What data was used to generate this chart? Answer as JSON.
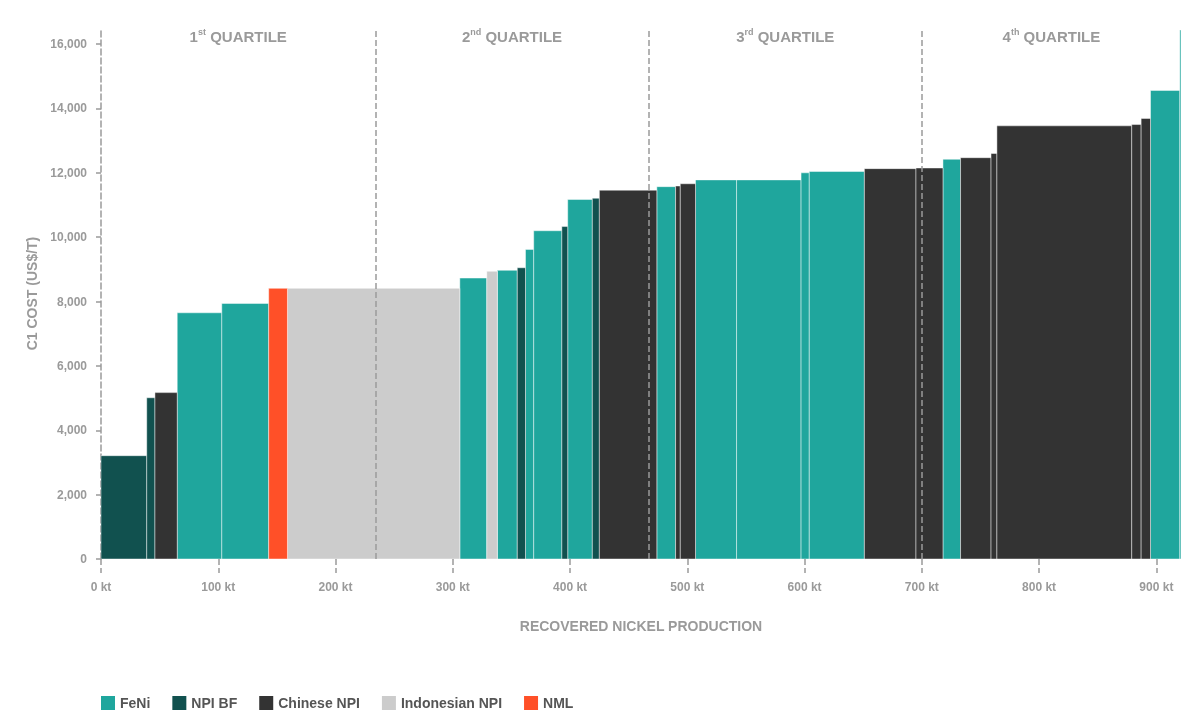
{
  "chart_data": {
    "type": "histogram",
    "xlabel": "RECOVERED NICKEL PRODUCTION",
    "ylabel": "C1 COST (US$/T)",
    "bins": [
      0,
      39,
      46,
      65,
      103,
      143,
      159,
      306,
      329,
      338,
      355,
      362,
      369,
      393,
      398,
      419,
      425,
      474,
      490,
      494,
      507,
      542,
      597,
      604,
      651,
      695,
      718,
      733,
      759,
      764,
      879,
      887,
      895,
      920,
      921
    ],
    "series": [
      {
        "name": "FeNi",
        "color": "#1fa69d",
        "values": [
          null,
          null,
          null,
          7650,
          7940,
          null,
          null,
          8730,
          null,
          8970,
          null,
          9620,
          10200,
          null,
          11170,
          null,
          null,
          11570,
          null,
          null,
          11780,
          11780,
          12000,
          12040,
          null,
          null,
          12420,
          null,
          null,
          null,
          null,
          null,
          14560,
          16440
        ]
      },
      {
        "name": "NPI BF",
        "color": "#11514f",
        "values": [
          3210,
          5010,
          null,
          null,
          null,
          null,
          null,
          null,
          null,
          null,
          9050,
          null,
          null,
          10330,
          null,
          11210,
          null,
          null,
          null,
          null,
          null,
          null,
          null,
          null,
          null,
          null,
          null,
          null,
          null,
          null,
          null,
          null,
          null,
          null
        ]
      },
      {
        "name": "Chinese NPI",
        "color": "#333333",
        "values": [
          null,
          null,
          5170,
          null,
          null,
          null,
          null,
          null,
          null,
          null,
          null,
          null,
          null,
          null,
          null,
          null,
          11460,
          null,
          11590,
          11660,
          null,
          null,
          null,
          null,
          12130,
          12150,
          null,
          12470,
          12600,
          13460,
          13500,
          13690,
          null,
          null
        ]
      },
      {
        "name": "Indonesian NPI",
        "color": "#cccccc",
        "values": [
          null,
          null,
          null,
          null,
          null,
          null,
          8410,
          null,
          8940,
          null,
          null,
          null,
          null,
          null,
          null,
          null,
          null,
          null,
          null,
          null,
          null,
          null,
          null,
          null,
          null,
          null,
          null,
          null,
          null,
          null,
          null,
          null,
          null,
          null
        ]
      },
      {
        "name": "NML",
        "color": "#ff5028",
        "values": [
          null,
          null,
          null,
          null,
          null,
          8410,
          null,
          null,
          null,
          null,
          null,
          null,
          null,
          null,
          null,
          null,
          null,
          null,
          null,
          null,
          null,
          null,
          null,
          null,
          null,
          null,
          null,
          null,
          null,
          null,
          null,
          null,
          null,
          null
        ]
      }
    ],
    "xlim": [
      0,
      921
    ],
    "xticks": [
      {
        "value": 0,
        "label": "0 kt"
      },
      {
        "value": 100,
        "label": "100 kt"
      },
      {
        "value": 200,
        "label": "200 kt"
      },
      {
        "value": 300,
        "label": "300 kt"
      },
      {
        "value": 400,
        "label": "400 kt"
      },
      {
        "value": 500,
        "label": "500 kt"
      },
      {
        "value": 600,
        "label": "600 kt"
      },
      {
        "value": 700,
        "label": "700 kt"
      },
      {
        "value": 800,
        "label": "800 kt"
      },
      {
        "value": 900,
        "label": "900 kt"
      }
    ],
    "ylim": [
      0,
      16500
    ],
    "yticks": [
      0,
      {
        "value": 2000,
        "label": "2,000"
      },
      {
        "value": 4000,
        "label": "4,000"
      },
      {
        "value": 6000,
        "label": "6,000"
      },
      {
        "value": 8000,
        "label": "8,000"
      },
      {
        "value": 10000,
        "label": "10,000"
      },
      {
        "value": 12000,
        "label": "12,000"
      },
      {
        "value": 14000,
        "label": "14,000"
      },
      {
        "value": 16000,
        "label": "16,000"
      }
    ],
    "ref_lines": [
      {
        "axis": "x",
        "value": 234,
        "label": null,
        "line_style": "dashed"
      },
      {
        "axis": "x",
        "value": 467,
        "label": null,
        "line_style": "dashed"
      },
      {
        "axis": "x",
        "value": 700,
        "label": null,
        "line_style": "dashed"
      }
    ],
    "annotations": [
      "1$^{st}$ QUARTILE",
      "2$^{nd}$ QUARTILE",
      "3$^{rd}$ QUARTILE",
      "4$^{th}$ QUARTILE"
    ],
    "grid": false,
    "legend": "bottom left"
  }
}
